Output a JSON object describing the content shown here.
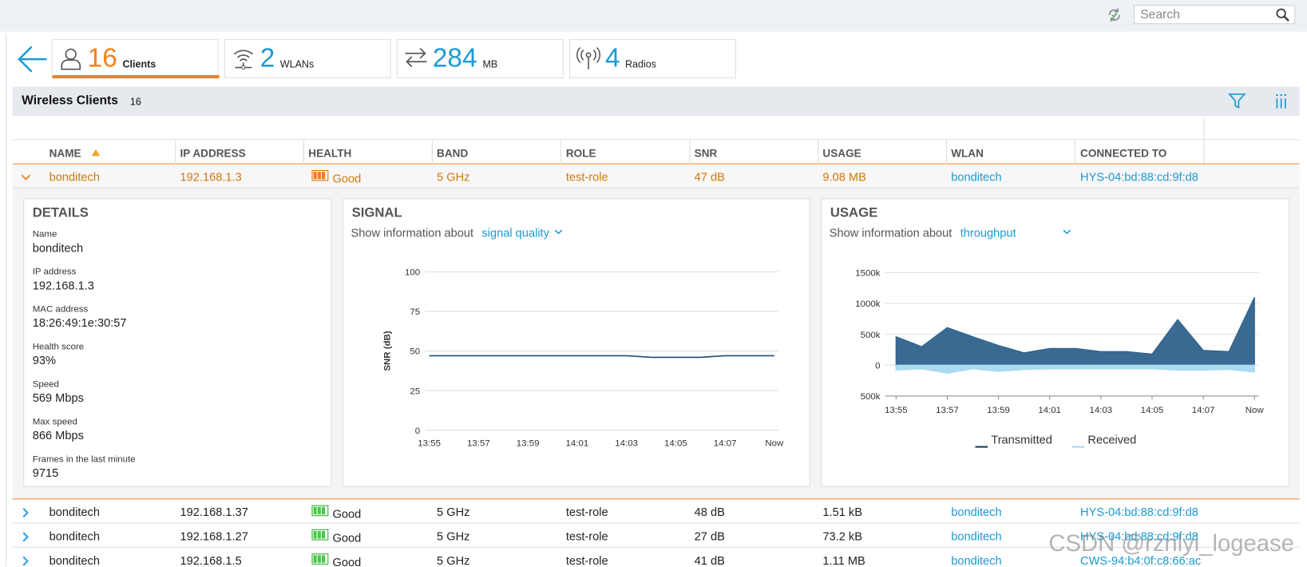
{
  "toolbar": {
    "search_placeholder": "Search"
  },
  "summary": [
    {
      "count": 16,
      "label": "Clients"
    },
    {
      "count": 2,
      "label": "WLANs"
    },
    {
      "count": 284,
      "label": "MB"
    },
    {
      "count": 4,
      "label": "Radios"
    }
  ],
  "panel": {
    "title": "Wireless Clients",
    "count": 16
  },
  "table": {
    "columns": [
      "NAME",
      "IP ADDRESS",
      "HEALTH",
      "BAND",
      "ROLE",
      "SNR",
      "USAGE",
      "WLAN",
      "CONNECTED TO"
    ],
    "rows": [
      [
        "bonditech",
        "192.168.1.3",
        "Good",
        "5 GHz",
        "test-role",
        "47 dB",
        "9.08 MB",
        "bonditech",
        "HYS-04:bd:88:cd:9f:d8"
      ],
      [
        "bonditech",
        "192.168.1.37",
        "Good",
        "5 GHz",
        "test-role",
        "48 dB",
        "1.51 kB",
        "bonditech",
        "HYS-04:bd:88:cd:9f:d8"
      ],
      [
        "bonditech",
        "192.168.1.27",
        "Good",
        "5 GHz",
        "test-role",
        "27 dB",
        "73.2 kB",
        "bonditech",
        "HYS-04:bd:88:cd:9f:d8"
      ],
      [
        "bonditech",
        "192.168.1.5",
        "Good",
        "5 GHz",
        "test-role",
        "41 dB",
        "1.11 MB",
        "bonditech",
        "CWS-94:b4:0f:c8:66:ac"
      ]
    ]
  },
  "details": {
    "title": "DETAILS",
    "fields": [
      {
        "label": "Name",
        "value": "bonditech"
      },
      {
        "label": "IP address",
        "value": "192.168.1.3"
      },
      {
        "label": "MAC address",
        "value": "18:26:49:1e:30:57"
      },
      {
        "label": "Health score",
        "value": "93%"
      },
      {
        "label": "Speed",
        "value": "569 Mbps"
      },
      {
        "label": "Max speed",
        "value": "866 Mbps"
      },
      {
        "label": "Frames in the last minute",
        "value": "9715"
      }
    ]
  },
  "signal": {
    "title": "SIGNAL",
    "prompt": "Show information about",
    "selector": "signal quality",
    "chart": {
      "type": "line",
      "y_label": "SNR (dB)",
      "x": [
        "13:55",
        null,
        "13:57",
        null,
        "13:59",
        null,
        "14:01",
        null,
        "14:03",
        null,
        "14:05",
        null,
        "14:07",
        null,
        "Now"
      ],
      "series": [
        {
          "color": "#1f4e79",
          "values": [
            47,
            47,
            47,
            47,
            47,
            47,
            47,
            47,
            47,
            46,
            46,
            46,
            47,
            47,
            47
          ]
        }
      ],
      "ylim": [
        0,
        100
      ],
      "yticks": [
        0,
        25,
        50,
        75,
        100
      ],
      "grid": true
    }
  },
  "usage": {
    "title": "USAGE",
    "prompt": "Show information about",
    "selector": "throughput",
    "chart": {
      "type": "area",
      "x": [
        "13:55",
        null,
        "13:57",
        null,
        "13:59",
        null,
        "14:01",
        null,
        "14:03",
        null,
        "14:05",
        null,
        "14:07",
        null,
        "Now"
      ],
      "series": [
        {
          "name": "Transmitted",
          "color": "#2f628c",
          "values": [
            460000,
            300000,
            610000,
            460000,
            320000,
            200000,
            270000,
            270000,
            220000,
            220000,
            180000,
            740000,
            240000,
            220000,
            1100000
          ]
        },
        {
          "name": "Received",
          "color": "#a8d8ef",
          "values": [
            -80000,
            -60000,
            -130000,
            -60000,
            -100000,
            -70000,
            -60000,
            -60000,
            -60000,
            -60000,
            -60000,
            -80000,
            -80000,
            -70000,
            -110000
          ]
        }
      ],
      "ylim": [
        -500000,
        1500000
      ],
      "yticks": [
        {
          "value": -500000,
          "label": "500k"
        },
        {
          "value": 0,
          "label": "0"
        },
        {
          "value": 500000,
          "label": "500k"
        },
        {
          "value": 1000000,
          "label": "1000k"
        },
        {
          "value": 1500000,
          "label": "1500k"
        }
      ],
      "grid": true
    }
  },
  "watermark": "CSDN @rznlyi_logease"
}
